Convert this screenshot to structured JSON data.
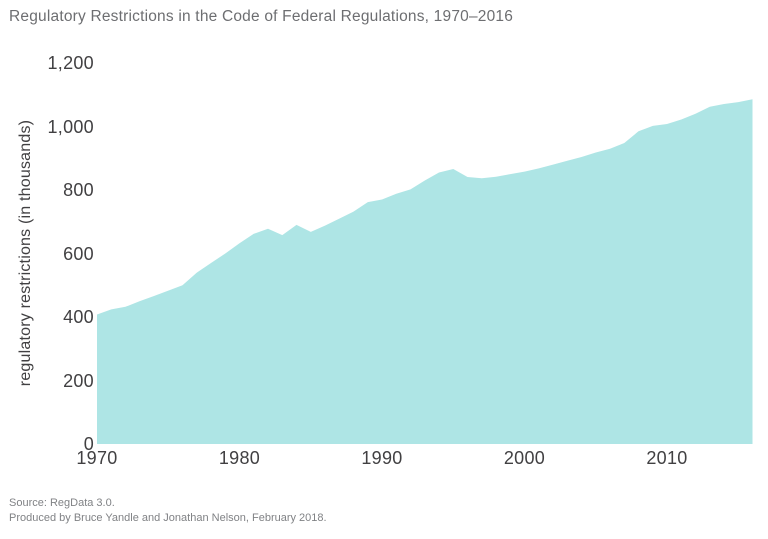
{
  "title": "Regulatory Restrictions in the Code of Federal Regulations, 1970–2016",
  "footer": {
    "source_line": "Source: RegData 3.0.",
    "produced_line": "Produced by Bruce Yandle and Jonathan Nelson, February 2018."
  },
  "colors": {
    "area": "#aee5e5",
    "title_text": "#6d6e71",
    "tick_text": "#414042",
    "footer_text": "#808285",
    "background": "#ffffff"
  },
  "chart_data": {
    "type": "area",
    "title": "Regulatory Restrictions in the Code of Federal Regulations, 1970–2016",
    "xlabel": "",
    "ylabel": "regulatory restrictions (in thousands)",
    "xlim": [
      1970,
      2016
    ],
    "ylim": [
      0,
      1200
    ],
    "grid": false,
    "legend": "none",
    "x": [
      1970,
      1971,
      1972,
      1973,
      1974,
      1975,
      1976,
      1977,
      1978,
      1979,
      1980,
      1981,
      1982,
      1983,
      1984,
      1985,
      1986,
      1987,
      1988,
      1989,
      1990,
      1991,
      1992,
      1993,
      1994,
      1995,
      1996,
      1997,
      1998,
      1999,
      2000,
      2001,
      2002,
      2003,
      2004,
      2005,
      2006,
      2007,
      2008,
      2009,
      2010,
      2011,
      2012,
      2013,
      2014,
      2015,
      2016
    ],
    "values": [
      408,
      424,
      432,
      450,
      466,
      483,
      500,
      540,
      570,
      600,
      632,
      662,
      678,
      658,
      690,
      668,
      688,
      710,
      732,
      762,
      770,
      788,
      802,
      830,
      855,
      866,
      841,
      837,
      842,
      850,
      858,
      868,
      880,
      892,
      904,
      918,
      930,
      948,
      985,
      1002,
      1008,
      1022,
      1040,
      1062,
      1071,
      1077,
      1086
    ],
    "y_ticks": [
      {
        "value": 0,
        "label": "0"
      },
      {
        "value": 200,
        "label": "200"
      },
      {
        "value": 400,
        "label": "400"
      },
      {
        "value": 600,
        "label": "600"
      },
      {
        "value": 800,
        "label": "800"
      },
      {
        "value": 1000,
        "label": "1,000"
      },
      {
        "value": 1200,
        "label": "1,200"
      }
    ],
    "x_ticks": [
      {
        "value": 1970,
        "label": "1970"
      },
      {
        "value": 1980,
        "label": "1980"
      },
      {
        "value": 1990,
        "label": "1990"
      },
      {
        "value": 2000,
        "label": "2000"
      },
      {
        "value": 2010,
        "label": "2010"
      }
    ]
  }
}
